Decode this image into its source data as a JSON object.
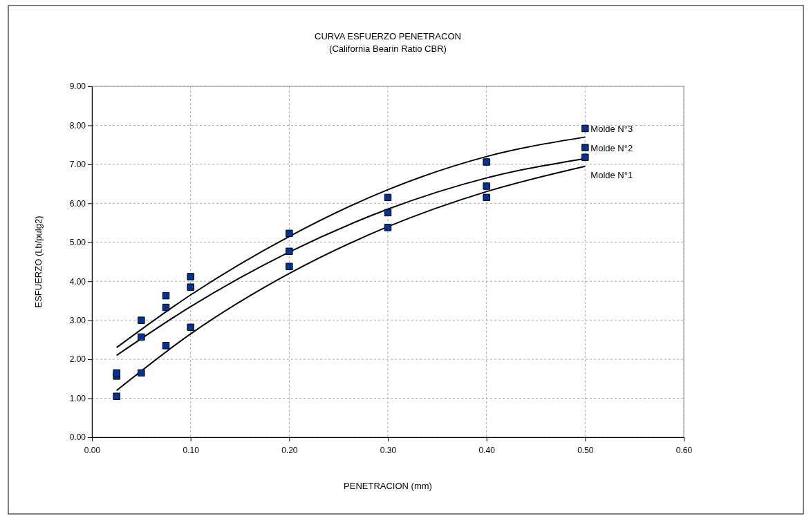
{
  "chart_data": {
    "type": "scatter",
    "title": "CURVA ESFUERZO PENETRACON",
    "subtitle": "(California Bearin Ratio CBR)",
    "xlabel": "PENETRACION (mm)",
    "ylabel": "ESFUERZO (Lb/pulg2)",
    "xlim": [
      0,
      0.6
    ],
    "xticks": [
      {
        "value": 0,
        "label": "0.00"
      },
      {
        "value": 0.1,
        "label": "0.10"
      },
      {
        "value": 0.2,
        "label": "0.20"
      },
      {
        "value": 0.3,
        "label": "0.30"
      },
      {
        "value": 0.4,
        "label": "0.40"
      },
      {
        "value": 0.5,
        "label": "0.50"
      },
      {
        "value": 0.6,
        "label": "0.60"
      }
    ],
    "ylim": [
      0,
      9
    ],
    "yticks": [
      {
        "value": 0,
        "label": "0.00"
      },
      {
        "value": 1,
        "label": "1.00"
      },
      {
        "value": 2,
        "label": "2.00"
      },
      {
        "value": 3,
        "label": "3.00"
      },
      {
        "value": 4,
        "label": "4.00"
      },
      {
        "value": 5,
        "label": "5.00"
      },
      {
        "value": 6,
        "label": "6.00"
      },
      {
        "value": 7,
        "label": "7.00"
      },
      {
        "value": 8,
        "label": "8.00"
      },
      {
        "value": 9,
        "label": "9.00"
      }
    ],
    "grid": true,
    "marker": "square",
    "series": [
      {
        "type": "line",
        "color": "#000000",
        "marker": "none",
        "line_style": "solid",
        "x": [
          0.025,
          0.1,
          0.2,
          0.3,
          0.4,
          0.5
        ],
        "values": [
          1.2,
          2.65,
          4.2,
          5.4,
          6.3,
          6.95
        ]
      },
      {
        "type": "line",
        "color": "#000000",
        "marker": "none",
        "line_style": "solid",
        "x": [
          0.025,
          0.1,
          0.2,
          0.3,
          0.4,
          0.5
        ],
        "values": [
          2.1,
          3.35,
          4.75,
          5.85,
          6.65,
          7.15
        ]
      },
      {
        "type": "line",
        "color": "#000000",
        "marker": "none",
        "line_style": "solid",
        "x": [
          0.025,
          0.1,
          0.2,
          0.3,
          0.4,
          0.5
        ],
        "values": [
          2.3,
          3.65,
          5.15,
          6.35,
          7.2,
          7.7
        ]
      },
      {
        "name": "Molde N°1",
        "color": "#003399",
        "x": [
          0.025,
          0.05,
          0.075,
          0.1,
          0.2,
          0.3,
          0.4,
          0.5
        ],
        "values": [
          1.05,
          1.65,
          2.35,
          2.82,
          4.38,
          5.38,
          6.15,
          7.18
        ]
      },
      {
        "name": "Molde N°2",
        "color": "#003399",
        "x": [
          0.025,
          0.05,
          0.075,
          0.1,
          0.2,
          0.3,
          0.4,
          0.5
        ],
        "values": [
          1.57,
          2.57,
          3.33,
          3.85,
          4.77,
          5.76,
          6.44,
          7.43
        ]
      },
      {
        "name": "Molde N°3",
        "color": "#003399",
        "x": [
          0.025,
          0.05,
          0.075,
          0.1,
          0.2,
          0.3,
          0.4,
          0.5
        ],
        "values": [
          1.65,
          3.0,
          3.63,
          4.12,
          5.23,
          6.15,
          7.06,
          7.92
        ]
      }
    ]
  }
}
